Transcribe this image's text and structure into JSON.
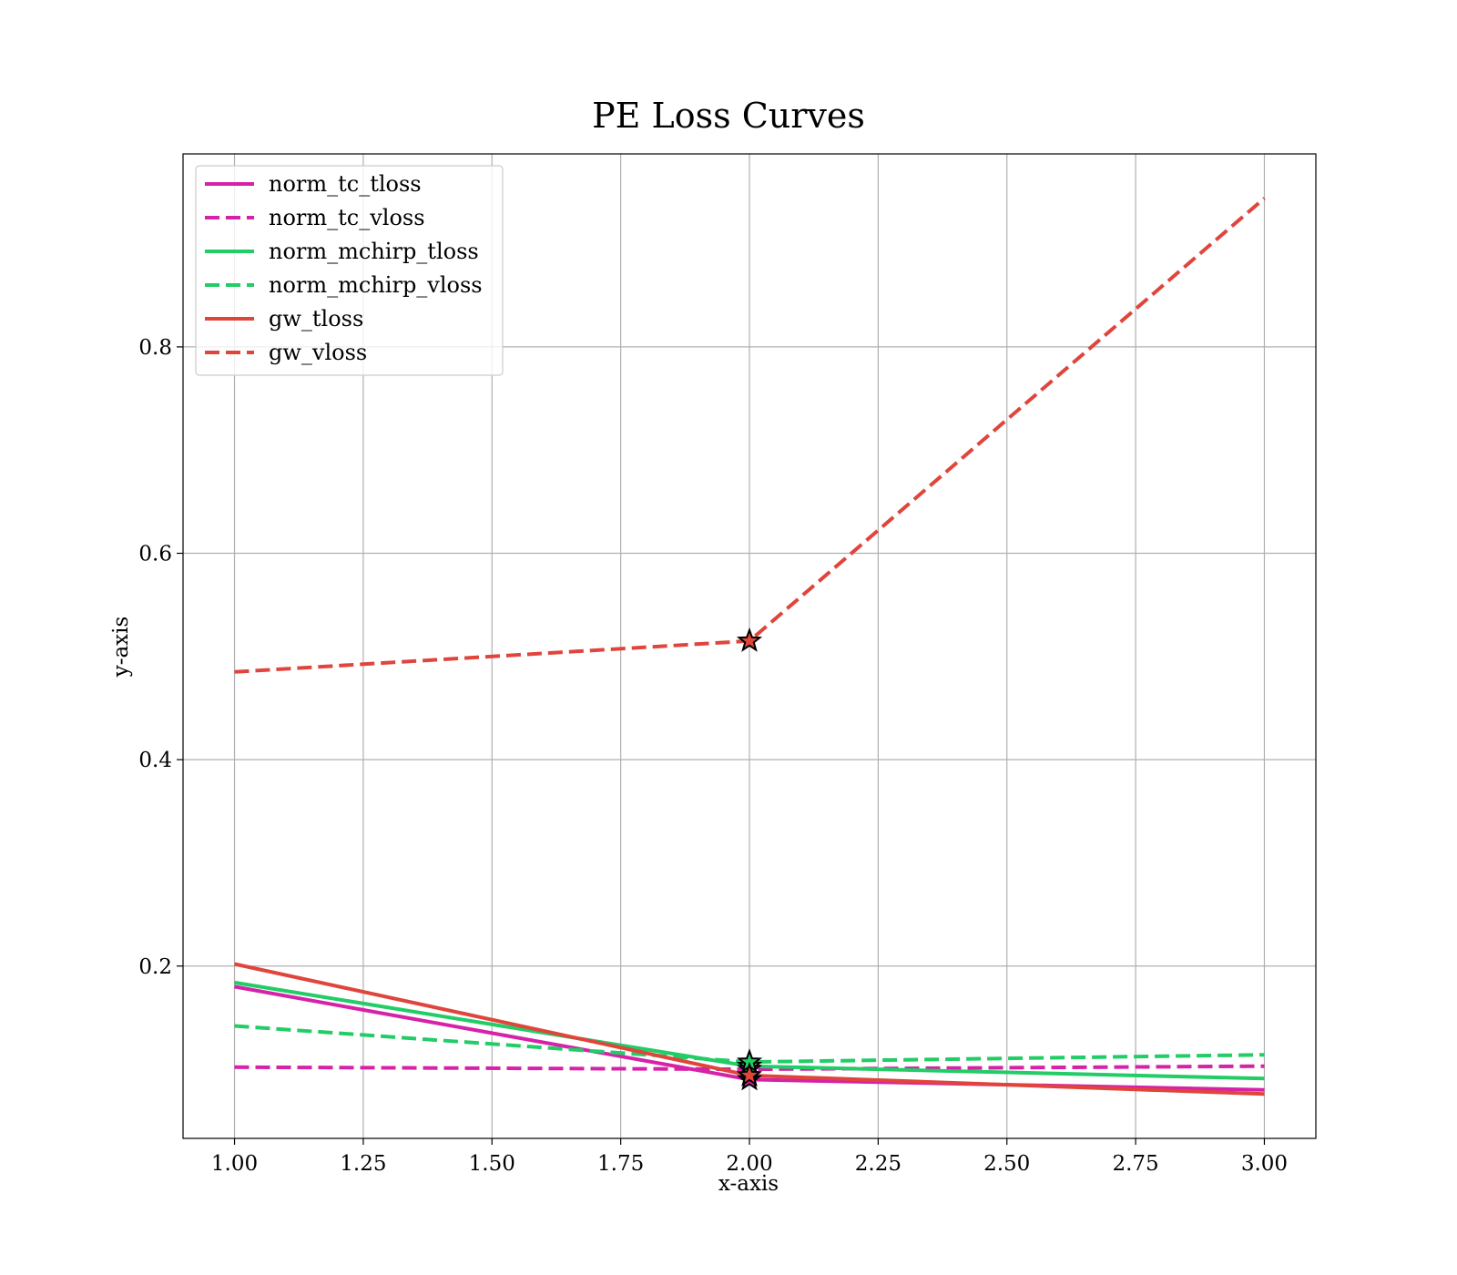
{
  "chart_data": {
    "type": "line",
    "title": "PE Loss Curves",
    "xlabel": "x-axis",
    "ylabel": "y-axis",
    "xlim": [
      0.9,
      3.1
    ],
    "ylim": [
      0.033,
      0.987
    ],
    "xticks": [
      1.0,
      1.25,
      1.5,
      1.75,
      2.0,
      2.25,
      2.5,
      2.75,
      3.0
    ],
    "xtick_labels": [
      "1.00",
      "1.25",
      "1.50",
      "1.75",
      "2.00",
      "2.25",
      "2.50",
      "2.75",
      "3.00"
    ],
    "yticks": [
      0.2,
      0.4,
      0.6,
      0.8
    ],
    "ytick_labels": [
      "0.2",
      "0.4",
      "0.6",
      "0.8"
    ],
    "grid": true,
    "legend_position": "upper-left",
    "x": [
      1,
      2,
      3
    ],
    "series": [
      {
        "name": "norm_tc_tloss",
        "values": [
          0.18,
          0.09,
          0.08
        ],
        "color": "#d622a8",
        "style": "solid",
        "best_index": 1
      },
      {
        "name": "norm_tc_vloss",
        "values": [
          0.102,
          0.1,
          0.103
        ],
        "color": "#d622a8",
        "style": "dashed",
        "best_index": 1
      },
      {
        "name": "norm_mchirp_tloss",
        "values": [
          0.184,
          0.103,
          0.091
        ],
        "color": "#22cc66",
        "style": "solid",
        "best_index": 1
      },
      {
        "name": "norm_mchirp_vloss",
        "values": [
          0.142,
          0.107,
          0.114
        ],
        "color": "#22cc66",
        "style": "dashed",
        "best_index": 1
      },
      {
        "name": "gw_tloss",
        "values": [
          0.202,
          0.094,
          0.076
        ],
        "color": "#e0453c",
        "style": "solid",
        "best_index": 1
      },
      {
        "name": "gw_vloss",
        "values": [
          0.485,
          0.515,
          0.944
        ],
        "color": "#e0453c",
        "style": "dashed",
        "best_index": 1
      }
    ]
  }
}
